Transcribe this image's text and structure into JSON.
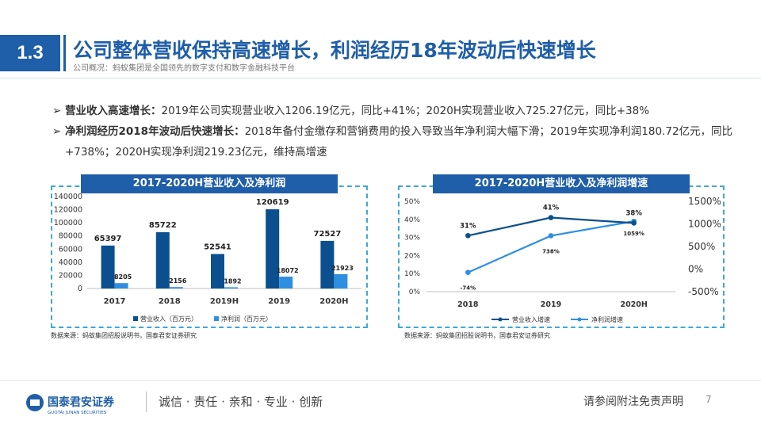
{
  "header": {
    "section_number": "1.3",
    "title": "公司整体营收保持高速增长，利润经历18年波动后快速增长",
    "subtitle": "公司概况：蚂蚁集团是全国领先的数字支付和数字金融科技平台"
  },
  "bullets": [
    {
      "head": "营业收入高速增长：",
      "text": "2019年公司实现营业收入1206.19亿元，同比+41%；2020H实现营业收入725.27亿元，同比+38%"
    },
    {
      "head": "净利润经历2018年波动后快速增长：",
      "text": "2018年备付金缴存和营销费用的投入导致当年净利润大幅下滑；2019年实现净利润180.72亿元，同比+738%；2020H实现净利润219.23亿元，维持高增速"
    }
  ],
  "colors": {
    "brand": "#1f5ea8",
    "series_dark": "#0b4f8f",
    "series_light": "#2e8fe0",
    "dash": "#3ea7d8"
  },
  "chart_data": [
    {
      "type": "bar",
      "title": "2017-2020H营业收入及净利润",
      "categories": [
        "2017",
        "2018",
        "2019H",
        "2019",
        "2020H"
      ],
      "series": [
        {
          "name": "营业收入（百万元）",
          "values": [
            65397,
            85722,
            52541,
            120619,
            72527
          ]
        },
        {
          "name": "净利润（百万元）",
          "values": [
            8205,
            2156,
            1892,
            18072,
            21923
          ]
        }
      ],
      "yticks": [
        "140000",
        "120000",
        "100000",
        "80000",
        "60000",
        "40000",
        "20000",
        "0"
      ],
      "ylim": [
        0,
        140000
      ],
      "legend": "bottom",
      "source": "数据来源：蚂蚁集团招股说明书，国泰君安证券研究"
    },
    {
      "type": "line",
      "title": "2017-2020H营业收入及净利润增速",
      "categories": [
        "2018",
        "2019",
        "2020H"
      ],
      "series": [
        {
          "name": "营业收入增速",
          "axis": "left",
          "values": [
            31,
            41,
            38
          ],
          "labels": [
            "31%",
            "41%",
            "38%"
          ]
        },
        {
          "name": "净利润增速",
          "axis": "right",
          "values": [
            -74,
            738,
            1059
          ],
          "labels": [
            "-74%",
            "738%",
            "1059%"
          ]
        }
      ],
      "yticks_left": [
        "50%",
        "40%",
        "30%",
        "20%",
        "10%",
        "0%"
      ],
      "ylim_left": [
        0,
        50
      ],
      "yticks_right": [
        "1500%",
        "1000%",
        "500%",
        "0%",
        "-500%"
      ],
      "ylim_right": [
        -500,
        1500
      ],
      "legend": "bottom",
      "source": "数据来源：蚂蚁集团招股说明书，国泰君安证券研究"
    }
  ],
  "footer": {
    "logo_cn": "国泰君安证券",
    "logo_en": "GUOTAI JUNAN SECURITIES",
    "slogan": "诚信 · 责任 · 亲和 · 专业 · 创新",
    "disclaimer": "请参阅附注免责声明",
    "page_number": "7"
  }
}
